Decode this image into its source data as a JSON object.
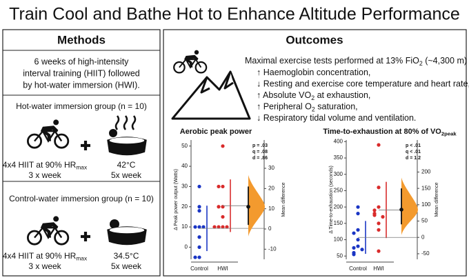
{
  "title": "Train Cool and Bathe Hot to Enhance Altitude Performance",
  "methods": {
    "heading": "Methods",
    "description": [
      "6 weeks of high-intensity",
      "interval training (HIIT) followed",
      "by hot-water immersion (HWI)."
    ],
    "groups": [
      {
        "label": "Hot-water immersion group (n = 10)",
        "training": [
          "4x4 HIIT at 90% HR",
          "max"
        ],
        "training_freq": "3 x week",
        "temperature": "42°C",
        "bath_freq": "5x week"
      },
      {
        "label": "Control-water immersion group (n = 10)",
        "training": [
          "4x4 HIIT at 90% HR",
          "max"
        ],
        "training_freq": "3 x week",
        "temperature": "34.5°C",
        "bath_freq": "5x week"
      }
    ]
  },
  "outcomes": {
    "heading": "Outcomes",
    "test": [
      "Maximal exercise tests performed at 13% FiO",
      "2",
      " (~4,300 m)"
    ],
    "effects": [
      [
        "↑ Haemoglobin concentration,"
      ],
      [
        "↓ Resting and exercise core temperature and heart rate,"
      ],
      [
        "↑ Absolute VO",
        "2",
        " at exhaustion,"
      ],
      [
        "↑ Peripheral O",
        "2",
        " saturation,"
      ],
      [
        "↓ Respiratory tidal volume and ventilation."
      ]
    ]
  },
  "charts": [
    {
      "type": "estimation",
      "title": [
        "Aerobic peak power"
      ],
      "ylabel": "Δ Peak power output (Watts)",
      "y2label": "Mean difference",
      "categories": [
        "Control",
        "HWI"
      ],
      "groups": [
        {
          "color": "#1a35c4",
          "values": [
            30,
            20,
            18,
            10,
            10,
            10,
            5,
            0,
            -5,
            -5
          ]
        },
        {
          "color": "#d92b2b",
          "values": [
            50,
            30,
            30,
            20,
            20,
            15,
            10,
            10,
            10,
            10
          ]
        }
      ],
      "ylim": [
        -6,
        53
      ],
      "yticks": [
        0,
        10,
        20,
        30,
        40,
        50
      ],
      "y2lim": [
        -15,
        44
      ],
      "y2ticks": [
        -10,
        0,
        10,
        20,
        30
      ],
      "effect": {
        "mean": 11,
        "ci": [
          2,
          21
        ],
        "color": "#f39a2e"
      },
      "stats": [
        "p = .03",
        "q = .08",
        "d = .86"
      ]
    },
    {
      "type": "estimation",
      "title": [
        "Time-to-exhaustion at 80% of VO",
        "2peak"
      ],
      "ylabel": "Δ Time-to-exhaustion (seconds)",
      "y2label": "Mean difference",
      "categories": [
        "Control",
        "HWI"
      ],
      "groups": [
        {
          "color": "#1a35c4",
          "values": [
            200,
            180,
            130,
            120,
            100,
            80,
            75,
            70,
            60,
            55
          ]
        },
        {
          "color": "#d92b2b",
          "values": [
            390,
            260,
            200,
            190,
            180,
            175,
            170,
            150,
            130,
            65
          ]
        }
      ],
      "ylim": [
        40,
        405
      ],
      "yticks": [
        50,
        100,
        150,
        200,
        250,
        300,
        350,
        400
      ],
      "y2lim": [
        -67,
        298
      ],
      "y2ticks": [
        -50,
        0,
        50,
        100,
        150,
        200
      ],
      "effect": {
        "mean": 85,
        "ci": [
          40,
          150
        ],
        "color": "#f39a2e"
      },
      "stats": [
        "p < .01",
        "q < .01",
        "d = 1.2"
      ]
    }
  ]
}
